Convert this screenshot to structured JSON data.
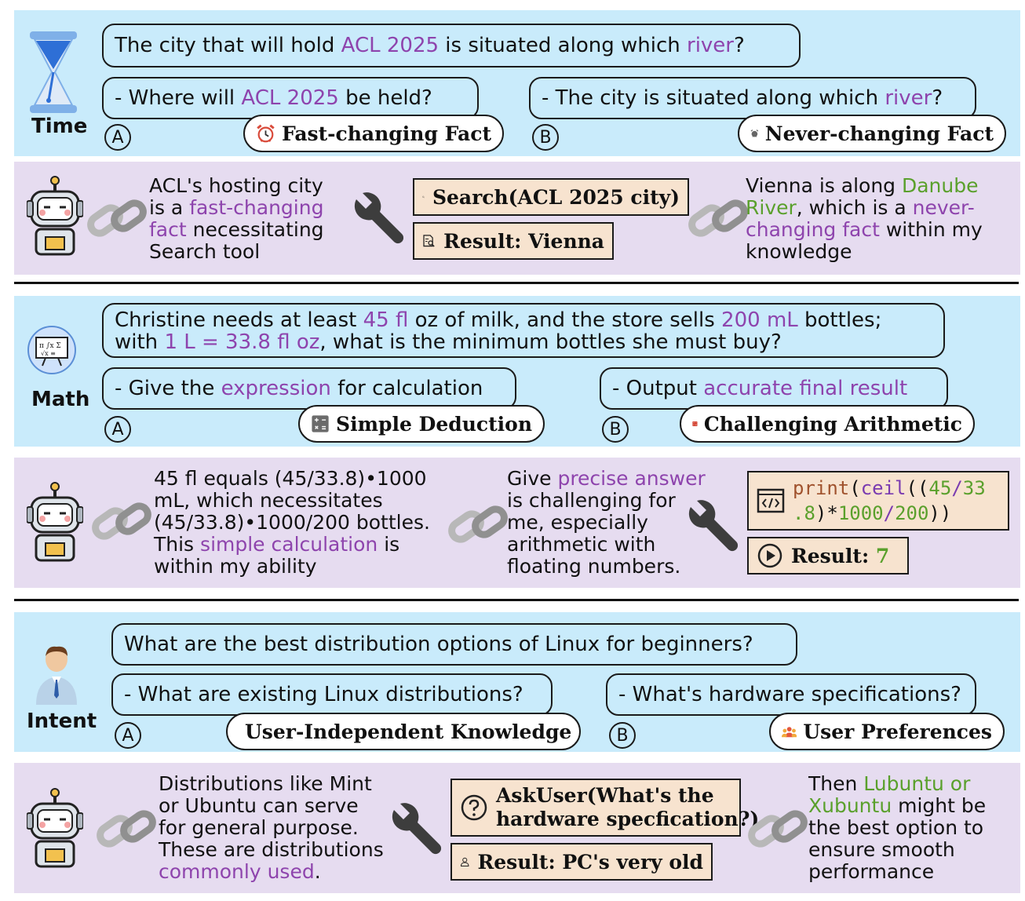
{
  "time": {
    "label": "Time",
    "question": {
      "p1": "The city that will hold ",
      "h1": "ACL 2025",
      "p2": " is situated along which ",
      "h2": "river",
      "p3": "?"
    },
    "optA": {
      "p1": "- Where will ",
      "h1": "ACL 2025",
      "p2": " be held?"
    },
    "optB": {
      "p1": "- The city is situated along which ",
      "h1": "river",
      "p2": "?"
    },
    "pillA": "Fast-changing Fact",
    "pillB": "Never-changing Fact",
    "reasonA": {
      "l1": "ACL's hosting city",
      "l2a": "is a ",
      "l2b": "fast-changing",
      "l3a": "fact",
      "l3b": " necessitating",
      "l4": "Search tool"
    },
    "tool1": "Search(ACL 2025 city)",
    "result1": "Result: Vienna",
    "reasonB": {
      "l1a": "Vienna is along ",
      "l1b": "Danube",
      "l2a": "River",
      "l2b": ", which is a ",
      "l2c": "never-",
      "l3a": "changing fact",
      "l3b": " within my",
      "l4": "knowledge"
    }
  },
  "math": {
    "label": "Math",
    "question": {
      "l1a": "Christine needs at least ",
      "l1b": "45 fl",
      "l1c": " oz of milk, and the store sells ",
      "l1d": "200 mL",
      "l1e": " bottles;",
      "l2a": "with ",
      "l2b": "1 L = 33.8 fl oz",
      "l2c": ", what is the minimum bottles she must buy?"
    },
    "optA": {
      "p1": "- Give the ",
      "h1": "expression",
      "p2": " for calculation"
    },
    "optB": {
      "p1": "- Output ",
      "h1": "accurate final result"
    },
    "pillA": "Simple Deduction",
    "pillB": "Challenging Arithmetic",
    "reasonA": {
      "l1": "45 fl equals (45/33.8)•1000",
      "l2": "mL, which necessitates",
      "l3": "(45/33.8)•1000/200 bottles.",
      "l4a": "This ",
      "l4b": "simple calculation",
      "l4c": " is",
      "l5": "within my ability"
    },
    "reasonB": {
      "l1a": "Give ",
      "l1b": "precise answer",
      "l2": "is challenging for",
      "l3": "me, especially",
      "l4": "arithmetic with",
      "l5": "floating numbers."
    },
    "code": {
      "f1": "print",
      "p1": "(",
      "f2": "ceil",
      "p2": "((",
      "n1": "45",
      "d1": "/",
      "n2": "33",
      "n3": ".8",
      "p3": ")*",
      "n4": "1000",
      "d2": "/",
      "n5": "200",
      "p4": "))"
    },
    "result_label": "Result: ",
    "result_value": "7"
  },
  "intent": {
    "label": "Intent",
    "question": "What are the best distribution options of Linux for beginners?",
    "optA": "- What are existing Linux distributions?",
    "optB": "- What's hardware specifications?",
    "pillA": "User-Independent Knowledge",
    "pillB": "User Preferences",
    "reasonA": {
      "l1": "Distributions like Mint",
      "l2": "or Ubuntu can serve",
      "l3": "for general purpose.",
      "l4": "These are distributions",
      "l5a": "commonly used",
      "l5b": "."
    },
    "tool1_l1": "AskUser(What's the",
    "tool1_l2": "hardware specfication?)",
    "result1": "Result: PC's very old",
    "reasonB": {
      "l1a": "Then ",
      "l1b": "Lubuntu or",
      "l2a": "Xubuntu",
      "l2b": " might be",
      "l3": "the best option to",
      "l4": "ensure smooth",
      "l5": "performance"
    }
  },
  "option_labels": {
    "a": "A",
    "b": "B"
  }
}
